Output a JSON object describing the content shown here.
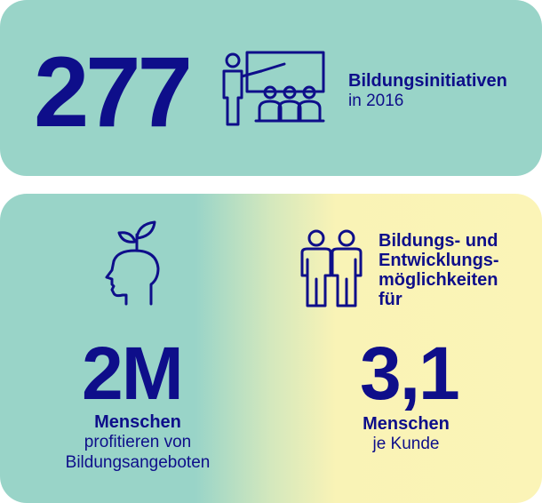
{
  "top_card": {
    "number": "277",
    "label_bold": "Bildungsinitiativen",
    "label_regular": "in 2016",
    "icon": "presentation-teacher-icon"
  },
  "left_stat": {
    "icon": "head-sprout-icon",
    "number": "2M",
    "label_bold": "Menschen",
    "label_line1": "profitieren von",
    "label_line2": "Bildungsangeboten"
  },
  "right_stat": {
    "icon": "two-people-icon",
    "heading_line1": "Bildungs- und",
    "heading_line2": "Entwicklungs-",
    "heading_line3": "möglichkeiten",
    "heading_line4": "für",
    "number": "3,1",
    "label_bold": "Menschen",
    "label_regular": "je Kunde"
  },
  "colors": {
    "navy": "#0e0e8a",
    "teal": "#99d4c8",
    "yellow": "#fbf4b7"
  }
}
